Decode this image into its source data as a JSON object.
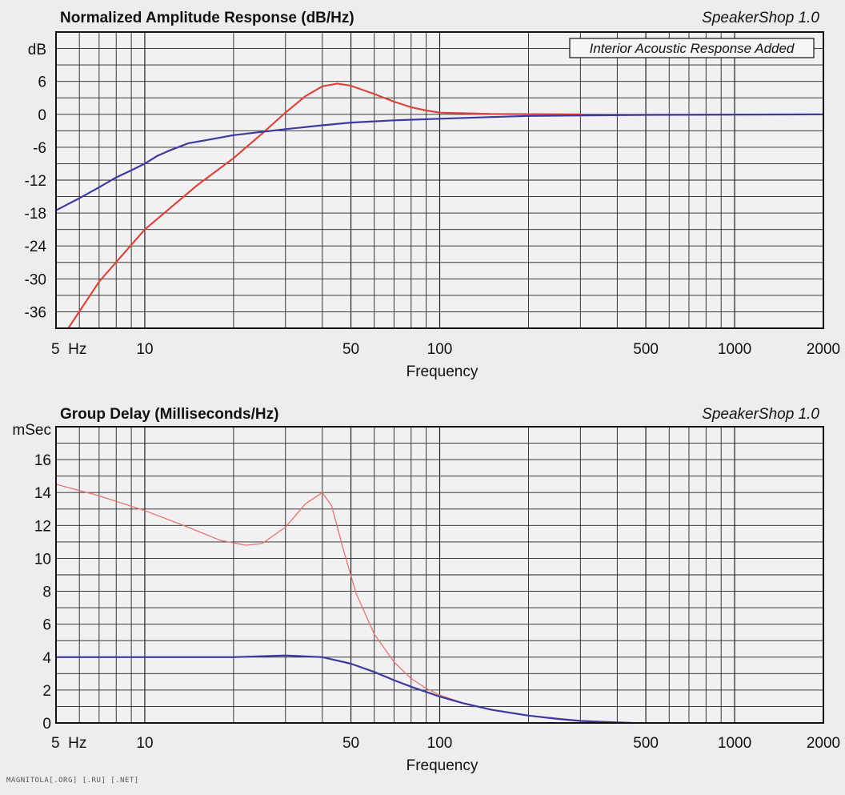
{
  "watermark": "MAGNITOLA[.ORG] [.RU] [.NET]",
  "chart_data": [
    {
      "type": "line",
      "title": "Normalized Amplitude Response (dB/Hz)",
      "brand": "SpeakerShop 1.0",
      "annotation": "Interior Acoustic Response Added",
      "xlabel": "Frequency",
      "ylabel": "dB",
      "x_scale": "log",
      "xlim": [
        5,
        2000
      ],
      "ylim": [
        -39,
        15
      ],
      "x_ticks": [
        {
          "value": 5,
          "label": "5  Hz"
        },
        {
          "value": 10,
          "label": "10"
        },
        {
          "value": 50,
          "label": "50"
        },
        {
          "value": 100,
          "label": "100"
        },
        {
          "value": 500,
          "label": "500"
        },
        {
          "value": 1000,
          "label": "1000"
        },
        {
          "value": 2000,
          "label": "2000"
        }
      ],
      "y_ticks": [
        6,
        0,
        -6,
        -12,
        -18,
        -24,
        -30,
        -36
      ],
      "y_grid": [
        -39,
        -36,
        -33,
        -30,
        -27,
        -24,
        -21,
        -18,
        -15,
        -12,
        -9,
        -6,
        -3,
        0,
        3,
        6,
        9,
        12,
        15
      ],
      "grid": true,
      "series": [
        {
          "color": "#d8463a",
          "width": 2.2,
          "points": [
            [
              5.5,
              -39
            ],
            [
              7,
              -30.5
            ],
            [
              10,
              -21
            ],
            [
              15,
              -13
            ],
            [
              20,
              -8
            ],
            [
              25,
              -3.5
            ],
            [
              30,
              0.3
            ],
            [
              35,
              3.3
            ],
            [
              40,
              5.1
            ],
            [
              45,
              5.6
            ],
            [
              50,
              5.2
            ],
            [
              60,
              3.7
            ],
            [
              70,
              2.3
            ],
            [
              80,
              1.3
            ],
            [
              90,
              0.7
            ],
            [
              100,
              0.3
            ],
            [
              150,
              0.05
            ],
            [
              300,
              0
            ]
          ]
        },
        {
          "color": "#3b3b9c",
          "width": 2.2,
          "points": [
            [
              5,
              -17.5
            ],
            [
              6,
              -15.3
            ],
            [
              7,
              -13.3
            ],
            [
              8,
              -11.5
            ],
            [
              9,
              -10.2
            ],
            [
              10,
              -9
            ],
            [
              11,
              -7.6
            ],
            [
              12,
              -6.7
            ],
            [
              14,
              -5.3
            ],
            [
              17,
              -4.5
            ],
            [
              20,
              -3.8
            ],
            [
              25,
              -3.2
            ],
            [
              30,
              -2.7
            ],
            [
              40,
              -2
            ],
            [
              50,
              -1.5
            ],
            [
              70,
              -1.1
            ],
            [
              100,
              -0.8
            ],
            [
              150,
              -0.5
            ],
            [
              200,
              -0.3
            ],
            [
              500,
              -0.1
            ],
            [
              2000,
              0
            ]
          ]
        }
      ]
    },
    {
      "type": "line",
      "title": "Group Delay (Milliseconds/Hz)",
      "brand": "SpeakerShop 1.0",
      "xlabel": "Frequency",
      "ylabel": "mSec",
      "x_scale": "log",
      "xlim": [
        5,
        2000
      ],
      "ylim": [
        0,
        18
      ],
      "x_ticks": [
        {
          "value": 5,
          "label": "5  Hz"
        },
        {
          "value": 10,
          "label": "10"
        },
        {
          "value": 50,
          "label": "50"
        },
        {
          "value": 100,
          "label": "100"
        },
        {
          "value": 500,
          "label": "500"
        },
        {
          "value": 1000,
          "label": "1000"
        },
        {
          "value": 2000,
          "label": "2000"
        }
      ],
      "y_ticks": [
        16,
        14,
        12,
        10,
        8,
        6,
        4,
        2,
        0
      ],
      "y_grid": [
        0,
        1,
        2,
        3,
        4,
        5,
        6,
        7,
        8,
        9,
        10,
        11,
        12,
        13,
        14,
        15,
        16,
        17,
        18
      ],
      "grid": true,
      "series": [
        {
          "color": "#e0776c",
          "width": 1.3,
          "points": [
            [
              5,
              14.5
            ],
            [
              7,
              13.8
            ],
            [
              10,
              12.9
            ],
            [
              14,
              11.9
            ],
            [
              18,
              11.1
            ],
            [
              22,
              10.8
            ],
            [
              25,
              10.9
            ],
            [
              30,
              11.9
            ],
            [
              35,
              13.3
            ],
            [
              40,
              14.0
            ],
            [
              43,
              13.2
            ],
            [
              47,
              10.6
            ],
            [
              52,
              7.9
            ],
            [
              60,
              5.4
            ],
            [
              70,
              3.7
            ],
            [
              80,
              2.7
            ],
            [
              90,
              2.1
            ],
            [
              100,
              1.7
            ],
            [
              120,
              1.2
            ],
            [
              150,
              0.8
            ],
            [
              200,
              0.45
            ],
            [
              300,
              0.15
            ],
            [
              450,
              0
            ]
          ]
        },
        {
          "color": "#3b3b9c",
          "width": 2.2,
          "points": [
            [
              5,
              4.0
            ],
            [
              10,
              4.0
            ],
            [
              20,
              4.0
            ],
            [
              30,
              4.1
            ],
            [
              40,
              4.0
            ],
            [
              50,
              3.6
            ],
            [
              60,
              3.1
            ],
            [
              70,
              2.6
            ],
            [
              80,
              2.2
            ],
            [
              100,
              1.6
            ],
            [
              120,
              1.2
            ],
            [
              150,
              0.8
            ],
            [
              200,
              0.45
            ],
            [
              250,
              0.25
            ],
            [
              300,
              0.12
            ],
            [
              400,
              0.03
            ],
            [
              450,
              0
            ]
          ]
        }
      ]
    }
  ]
}
